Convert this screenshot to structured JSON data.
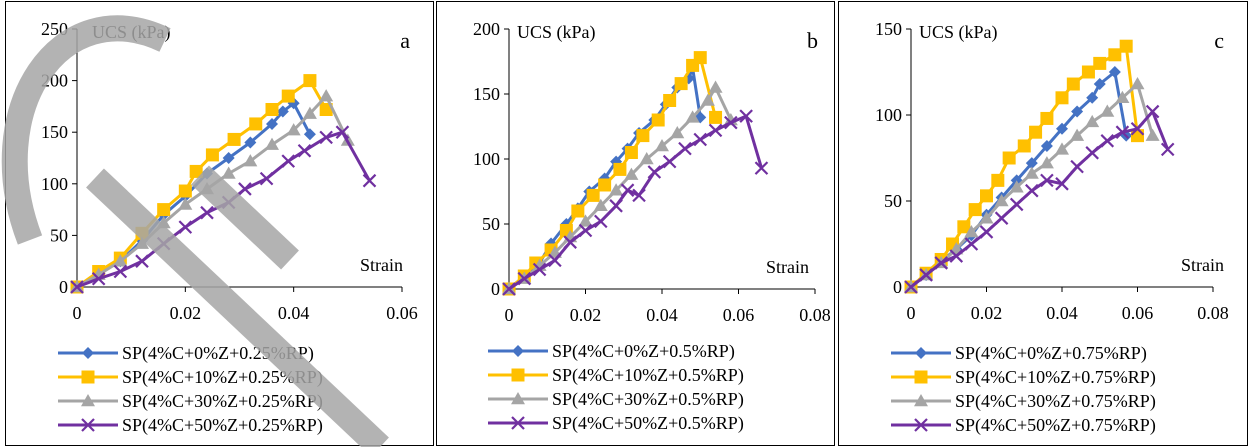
{
  "chart_data": [
    {
      "type": "line",
      "panel_letter": "a",
      "ylabel": "UCS (kPa)",
      "xlabel": "Strain",
      "xlim": [
        0,
        0.06
      ],
      "ylim": [
        0,
        250
      ],
      "x_ticks": [
        "0",
        "0.02",
        "0.04",
        "0.06"
      ],
      "y_ticks": [
        "0",
        "50",
        "100",
        "150",
        "200",
        "250"
      ],
      "grid": false,
      "legend_position": "bottom",
      "series": [
        {
          "name": "SP(4%C+0%Z+0.25%RP)",
          "color": "#4472c4",
          "marker": "diamond",
          "points": [
            [
              0,
              0
            ],
            [
              0.004,
              13
            ],
            [
              0.008,
              25
            ],
            [
              0.012,
              45
            ],
            [
              0.016,
              70
            ],
            [
              0.02,
              88
            ],
            [
              0.024,
              110
            ],
            [
              0.028,
              125
            ],
            [
              0.032,
              140
            ],
            [
              0.036,
              158
            ],
            [
              0.038,
              170
            ],
            [
              0.04,
              178
            ],
            [
              0.043,
              148
            ]
          ]
        },
        {
          "name": "SP(4%C+10%Z+0.25%RP)",
          "color": "#ffc000",
          "marker": "square",
          "points": [
            [
              0,
              0
            ],
            [
              0.004,
              15
            ],
            [
              0.008,
              28
            ],
            [
              0.012,
              52
            ],
            [
              0.016,
              75
            ],
            [
              0.02,
              93
            ],
            [
              0.022,
              112
            ],
            [
              0.025,
              128
            ],
            [
              0.029,
              143
            ],
            [
              0.033,
              158
            ],
            [
              0.036,
              172
            ],
            [
              0.039,
              185
            ],
            [
              0.043,
              200
            ],
            [
              0.046,
              172
            ]
          ]
        },
        {
          "name": "SP(4%C+30%Z+0.25%RP)",
          "color": "#a5a5a5",
          "marker": "triangle",
          "points": [
            [
              0,
              0
            ],
            [
              0.004,
              12
            ],
            [
              0.008,
              25
            ],
            [
              0.012,
              42
            ],
            [
              0.016,
              62
            ],
            [
              0.02,
              80
            ],
            [
              0.024,
              95
            ],
            [
              0.028,
              110
            ],
            [
              0.032,
              122
            ],
            [
              0.036,
              138
            ],
            [
              0.04,
              152
            ],
            [
              0.043,
              168
            ],
            [
              0.046,
              185
            ],
            [
              0.05,
              142
            ]
          ]
        },
        {
          "name": "SP(4%C+50%Z+0.25%RP)",
          "color": "#7030a0",
          "marker": "x",
          "points": [
            [
              0,
              0
            ],
            [
              0.004,
              8
            ],
            [
              0.008,
              15
            ],
            [
              0.012,
              25
            ],
            [
              0.016,
              42
            ],
            [
              0.02,
              58
            ],
            [
              0.024,
              72
            ],
            [
              0.028,
              82
            ],
            [
              0.031,
              95
            ],
            [
              0.035,
              105
            ],
            [
              0.039,
              122
            ],
            [
              0.042,
              132
            ],
            [
              0.046,
              145
            ],
            [
              0.049,
              150
            ],
            [
              0.054,
              103
            ]
          ]
        }
      ]
    },
    {
      "type": "line",
      "panel_letter": "b",
      "ylabel": "UCS (kPa)",
      "xlabel": "Strain",
      "xlim": [
        0,
        0.08
      ],
      "ylim": [
        0,
        200
      ],
      "x_ticks": [
        "0",
        "0.02",
        "0.04",
        "0.06",
        "0.08"
      ],
      "y_ticks": [
        "0",
        "50",
        "100",
        "150",
        "200"
      ],
      "grid": false,
      "legend_position": "bottom",
      "series": [
        {
          "name": "SP(4%C+0%Z+0.5%RP)",
          "color": "#4472c4",
          "marker": "diamond",
          "points": [
            [
              0,
              0
            ],
            [
              0.004,
              10
            ],
            [
              0.008,
              20
            ],
            [
              0.011,
              35
            ],
            [
              0.015,
              50
            ],
            [
              0.018,
              62
            ],
            [
              0.021,
              75
            ],
            [
              0.025,
              85
            ],
            [
              0.028,
              98
            ],
            [
              0.031,
              108
            ],
            [
              0.034,
              120
            ],
            [
              0.038,
              130
            ],
            [
              0.041,
              142
            ],
            [
              0.044,
              155
            ],
            [
              0.047,
              162
            ],
            [
              0.048,
              170
            ],
            [
              0.05,
              132
            ]
          ]
        },
        {
          "name": "SP(4%C+10%Z+0.5%RP)",
          "color": "#ffc000",
          "marker": "square",
          "points": [
            [
              0,
              0
            ],
            [
              0.004,
              10
            ],
            [
              0.007,
              20
            ],
            [
              0.011,
              30
            ],
            [
              0.015,
              45
            ],
            [
              0.018,
              60
            ],
            [
              0.022,
              72
            ],
            [
              0.025,
              80
            ],
            [
              0.029,
              92
            ],
            [
              0.032,
              105
            ],
            [
              0.035,
              118
            ],
            [
              0.039,
              130
            ],
            [
              0.042,
              145
            ],
            [
              0.045,
              158
            ],
            [
              0.048,
              172
            ],
            [
              0.05,
              178
            ],
            [
              0.054,
              132
            ]
          ]
        },
        {
          "name": "SP(4%C+30%Z+0.5%RP)",
          "color": "#a5a5a5",
          "marker": "triangle",
          "points": [
            [
              0,
              0
            ],
            [
              0.004,
              8
            ],
            [
              0.008,
              18
            ],
            [
              0.012,
              28
            ],
            [
              0.016,
              40
            ],
            [
              0.02,
              52
            ],
            [
              0.024,
              64
            ],
            [
              0.028,
              76
            ],
            [
              0.032,
              88
            ],
            [
              0.036,
              100
            ],
            [
              0.04,
              110
            ],
            [
              0.044,
              120
            ],
            [
              0.048,
              132
            ],
            [
              0.052,
              145
            ],
            [
              0.054,
              155
            ],
            [
              0.058,
              130
            ]
          ]
        },
        {
          "name": "SP(4%C+50%Z+0.5%RP)",
          "color": "#7030a0",
          "marker": "x",
          "points": [
            [
              0,
              0
            ],
            [
              0.004,
              8
            ],
            [
              0.008,
              15
            ],
            [
              0.012,
              22
            ],
            [
              0.016,
              36
            ],
            [
              0.02,
              45
            ],
            [
              0.024,
              52
            ],
            [
              0.028,
              64
            ],
            [
              0.031,
              76
            ],
            [
              0.034,
              72
            ],
            [
              0.038,
              90
            ],
            [
              0.042,
              98
            ],
            [
              0.046,
              108
            ],
            [
              0.05,
              115
            ],
            [
              0.054,
              122
            ],
            [
              0.058,
              128
            ],
            [
              0.062,
              133
            ],
            [
              0.066,
              93
            ]
          ]
        }
      ]
    },
    {
      "type": "line",
      "panel_letter": "c",
      "ylabel": "UCS (kPa)",
      "xlabel": "Strain",
      "xlim": [
        0,
        0.08
      ],
      "ylim": [
        0,
        150
      ],
      "x_ticks": [
        "0",
        "0.02",
        "0.04",
        "0.06",
        "0.08"
      ],
      "y_ticks": [
        "0",
        "50",
        "100",
        "150"
      ],
      "grid": false,
      "legend_position": "bottom",
      "series": [
        {
          "name": "SP(4%C+0%Z+0.75%RP)",
          "color": "#4472c4",
          "marker": "diamond",
          "points": [
            [
              0,
              0
            ],
            [
              0.004,
              7
            ],
            [
              0.008,
              15
            ],
            [
              0.012,
              22
            ],
            [
              0.016,
              30
            ],
            [
              0.02,
              42
            ],
            [
              0.024,
              52
            ],
            [
              0.028,
              62
            ],
            [
              0.032,
              72
            ],
            [
              0.036,
              82
            ],
            [
              0.04,
              92
            ],
            [
              0.044,
              102
            ],
            [
              0.048,
              110
            ],
            [
              0.05,
              118
            ],
            [
              0.054,
              125
            ],
            [
              0.057,
              88
            ]
          ]
        },
        {
          "name": "SP(4%C+10%Z+0.75%RP)",
          "color": "#ffc000",
          "marker": "square",
          "points": [
            [
              0,
              0
            ],
            [
              0.004,
              8
            ],
            [
              0.008,
              16
            ],
            [
              0.011,
              25
            ],
            [
              0.014,
              35
            ],
            [
              0.017,
              45
            ],
            [
              0.02,
              53
            ],
            [
              0.023,
              62
            ],
            [
              0.026,
              75
            ],
            [
              0.03,
              82
            ],
            [
              0.033,
              90
            ],
            [
              0.036,
              98
            ],
            [
              0.04,
              110
            ],
            [
              0.043,
              118
            ],
            [
              0.047,
              125
            ],
            [
              0.05,
              130
            ],
            [
              0.054,
              135
            ],
            [
              0.057,
              140
            ],
            [
              0.06,
              88
            ]
          ]
        },
        {
          "name": "SP(4%C+30%Z+0.75%RP)",
          "color": "#a5a5a5",
          "marker": "triangle",
          "points": [
            [
              0,
              0
            ],
            [
              0.004,
              7
            ],
            [
              0.008,
              14
            ],
            [
              0.012,
              22
            ],
            [
              0.016,
              32
            ],
            [
              0.02,
              40
            ],
            [
              0.024,
              50
            ],
            [
              0.028,
              58
            ],
            [
              0.032,
              66
            ],
            [
              0.036,
              72
            ],
            [
              0.04,
              80
            ],
            [
              0.044,
              88
            ],
            [
              0.048,
              96
            ],
            [
              0.052,
              102
            ],
            [
              0.056,
              110
            ],
            [
              0.06,
              118
            ],
            [
              0.064,
              88
            ]
          ]
        },
        {
          "name": "SP(4%C+50%Z+0.75%RP)",
          "color": "#7030a0",
          "marker": "x",
          "points": [
            [
              0,
              0
            ],
            [
              0.004,
              7
            ],
            [
              0.008,
              14
            ],
            [
              0.012,
              18
            ],
            [
              0.016,
              25
            ],
            [
              0.02,
              32
            ],
            [
              0.024,
              40
            ],
            [
              0.028,
              48
            ],
            [
              0.032,
              56
            ],
            [
              0.036,
              62
            ],
            [
              0.04,
              60
            ],
            [
              0.044,
              70
            ],
            [
              0.048,
              78
            ],
            [
              0.052,
              85
            ],
            [
              0.056,
              90
            ],
            [
              0.06,
              92
            ],
            [
              0.064,
              102
            ],
            [
              0.068,
              80
            ]
          ]
        }
      ]
    }
  ]
}
